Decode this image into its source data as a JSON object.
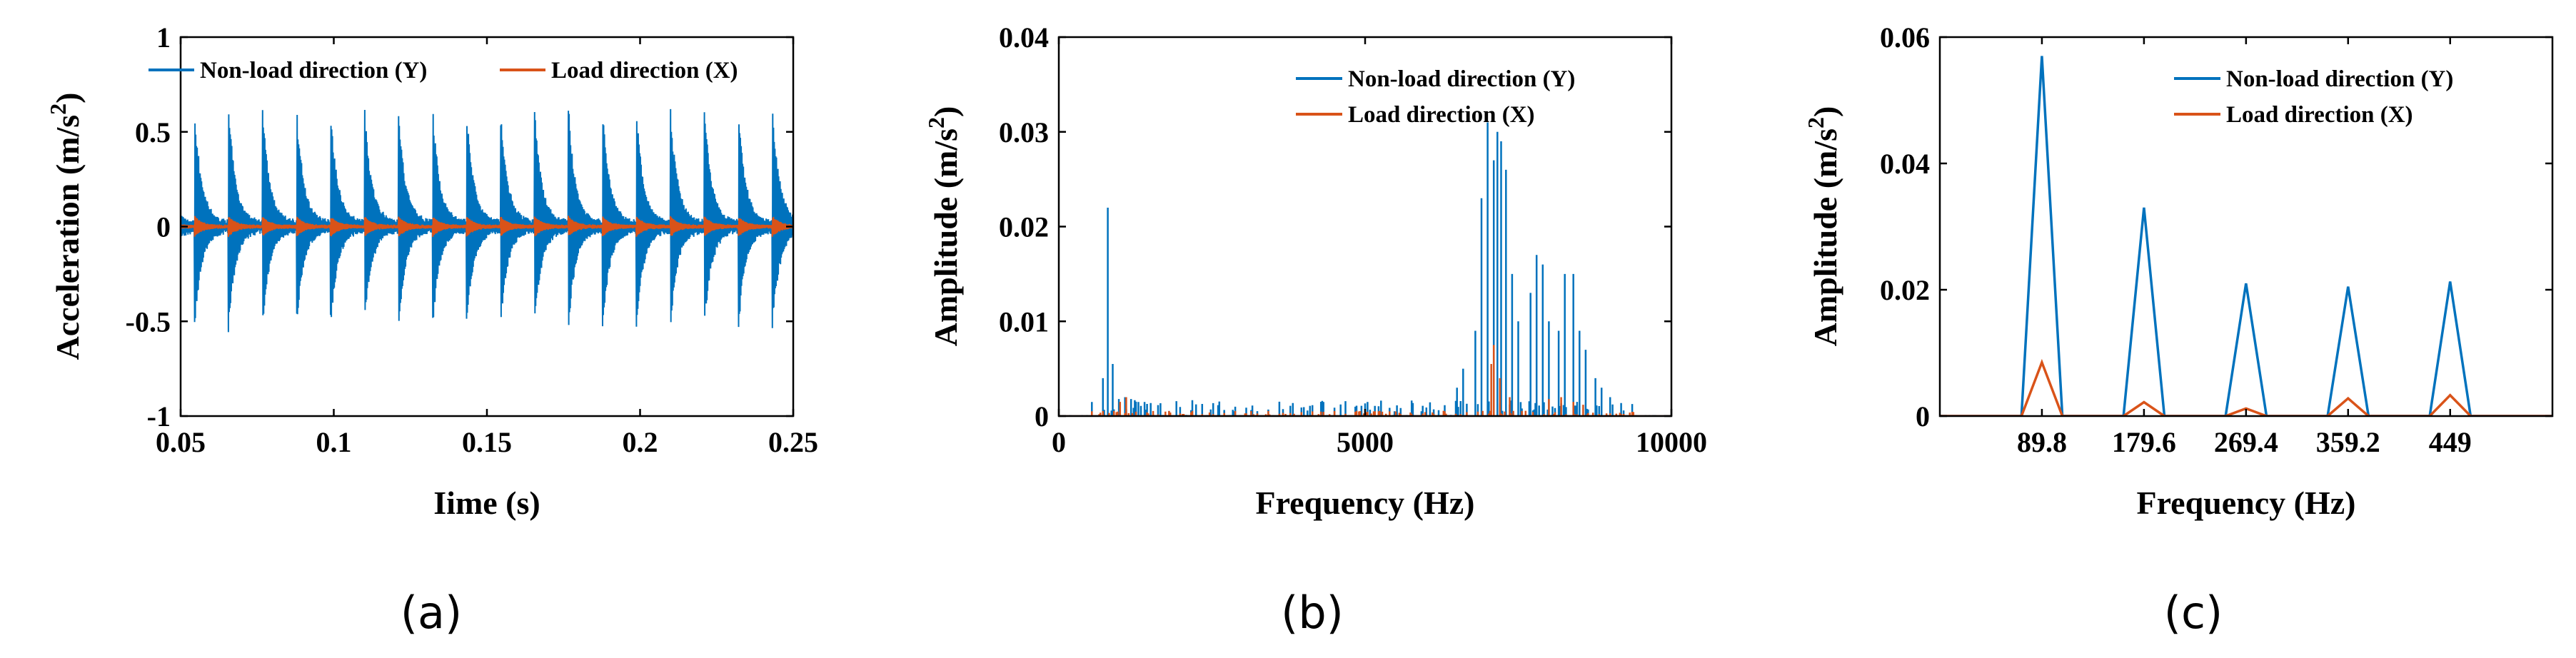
{
  "colors": {
    "series1": "#0072BD",
    "series2": "#D95319",
    "axis": "#000000"
  },
  "chart_data": [
    {
      "id": "a",
      "type": "line",
      "caption": "(a)",
      "xlabel": "Iime (s)",
      "ylabel": "Acceleration (m/s",
      "ylabel_sup": "2",
      "ylabel_close": ")",
      "xlim": [
        0.05,
        0.25
      ],
      "ylim": [
        -1,
        1
      ],
      "xticks": [
        0.05,
        0.1,
        0.15,
        0.2,
        0.25
      ],
      "xtick_labels": [
        "0.05",
        "0.1",
        "0.15",
        "0.2",
        "0.25"
      ],
      "yticks": [
        -1,
        -0.5,
        0,
        0.5,
        1
      ],
      "ytick_labels": [
        "-1",
        "-0.5",
        "0",
        "0.5",
        "1"
      ],
      "legend": [
        "Non-load direction (Y)",
        "Load direction (X)"
      ],
      "legend_position": "top",
      "signal": {
        "impact_period_s": 0.0111,
        "first_impact_s": 0.0545,
        "y_peak_max": 0.63,
        "y_peak_min": -0.53,
        "x_peak_max": 0.05,
        "x_peak_min": -0.05
      }
    },
    {
      "id": "b",
      "type": "line",
      "caption": "(b)",
      "xlabel": "Frequency (Hz)",
      "ylabel": "Amplitude (m/s",
      "ylabel_sup": "2",
      "ylabel_close": ")",
      "xlim": [
        0,
        10000
      ],
      "ylim": [
        0,
        0.04
      ],
      "xticks": [
        0,
        5000,
        10000
      ],
      "xtick_labels": [
        "0",
        "5000",
        "10000"
      ],
      "yticks": [
        0,
        0.01,
        0.02,
        0.03,
        0.04
      ],
      "ytick_labels": [
        "0",
        "0.01",
        "0.02",
        "0.03",
        "0.04"
      ],
      "legend": [
        "Non-load direction (Y)",
        "Load direction (X)"
      ],
      "legend_position": "top-right",
      "series": [
        {
          "name": "Non-load direction (Y)",
          "peaks": [
            [
              800,
              0.022
            ],
            [
              720,
              0.004
            ],
            [
              880,
              0.0055
            ],
            [
              980,
              0.0018
            ],
            [
              1080,
              0.002
            ],
            [
              1170,
              0.0018
            ],
            [
              7000,
              0.031
            ],
            [
              7100,
              0.027
            ],
            [
              7150,
              0.03
            ],
            [
              7220,
              0.029
            ],
            [
              7300,
              0.026
            ],
            [
              6900,
              0.023
            ],
            [
              6800,
              0.009
            ],
            [
              7400,
              0.015
            ],
            [
              7500,
              0.01
            ],
            [
              7700,
              0.013
            ],
            [
              7800,
              0.017
            ],
            [
              7900,
              0.016
            ],
            [
              8000,
              0.01
            ],
            [
              8150,
              0.009
            ],
            [
              8250,
              0.015
            ],
            [
              8400,
              0.015
            ],
            [
              8500,
              0.009
            ],
            [
              8600,
              0.007
            ],
            [
              8750,
              0.004
            ],
            [
              8850,
              0.003
            ],
            [
              6600,
              0.005
            ],
            [
              6500,
              0.003
            ],
            [
              9000,
              0.002
            ]
          ]
        },
        {
          "name": "Load direction (X)",
          "peaks": [
            [
              1000,
              0.0015
            ],
            [
              1100,
              0.002
            ],
            [
              7050,
              0.0055
            ],
            [
              7100,
              0.0075
            ],
            [
              7200,
              0.004
            ],
            [
              7350,
              0.002
            ],
            [
              8000,
              0.0018
            ],
            [
              8200,
              0.002
            ],
            [
              8400,
              0.0015
            ],
            [
              8550,
              0.0012
            ]
          ]
        }
      ]
    },
    {
      "id": "c",
      "type": "line",
      "caption": "(c)",
      "xlabel": "Frequency (Hz)",
      "ylabel": "Amplitude (m/s",
      "ylabel_sup": "2",
      "ylabel_close": ")",
      "xlim": [
        0,
        539
      ],
      "ylim": [
        0,
        0.06
      ],
      "xticks": [
        89.8,
        179.6,
        269.4,
        359.2,
        449
      ],
      "xtick_labels": [
        "89.8",
        "179.6",
        "269.4",
        "359.2",
        "449"
      ],
      "yticks": [
        0,
        0.02,
        0.04,
        0.06
      ],
      "ytick_labels": [
        "0",
        "0.02",
        "0.04",
        "0.06"
      ],
      "legend": [
        "Non-load direction (Y)",
        "Load direction (X)"
      ],
      "legend_position": "top-right",
      "series": [
        {
          "name": "Non-load direction (Y)",
          "x": [
            89.8,
            179.6,
            269.4,
            359.2,
            449
          ],
          "values": [
            0.057,
            0.033,
            0.021,
            0.0205,
            0.0213
          ]
        },
        {
          "name": "Load direction (X)",
          "x": [
            89.8,
            179.6,
            269.4,
            359.2,
            449
          ],
          "values": [
            0.0085,
            0.0022,
            0.0012,
            0.0028,
            0.0033
          ]
        }
      ],
      "peak_halfwidth_hz": 18
    }
  ]
}
